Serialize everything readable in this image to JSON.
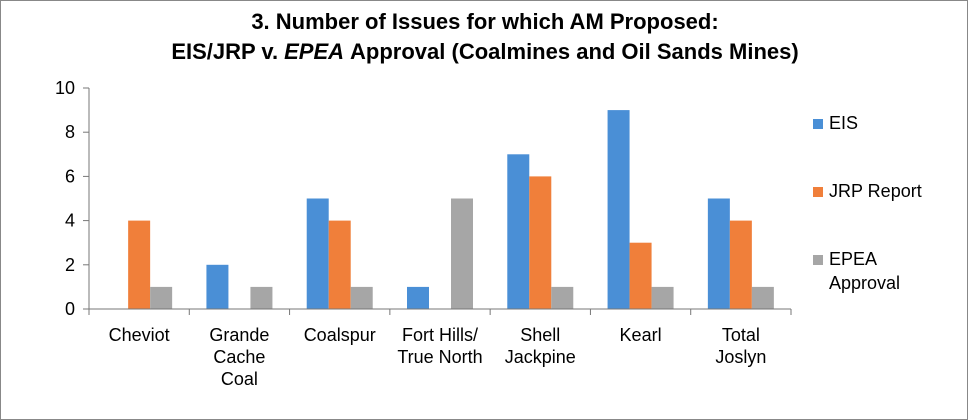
{
  "chart_data": {
    "type": "bar",
    "title": [
      "3. Number of Issues for which AM Proposed:",
      "EIS/JRP v.",
      "EPEA",
      "Approval (Coalmines and Oil Sands Mines)"
    ],
    "categories": [
      [
        "Cheviot"
      ],
      [
        "Grande",
        "Cache",
        "Coal"
      ],
      [
        "Coalspur"
      ],
      [
        "Fort Hills/",
        "True North"
      ],
      [
        "Shell",
        "Jackpine"
      ],
      [
        "Kearl"
      ],
      [
        "Total",
        "Joslyn"
      ]
    ],
    "series": [
      {
        "name": "EIS",
        "color": "#4a8fd6",
        "values": [
          0,
          2,
          5,
          1,
          7,
          9,
          5
        ]
      },
      {
        "name": "JRP Report",
        "color": "#f07f3a",
        "values": [
          4,
          0,
          4,
          0,
          6,
          3,
          4
        ]
      },
      {
        "name": "EPEA Approval",
        "color": "#a6a6a6",
        "values": [
          1,
          1,
          1,
          5,
          1,
          1,
          1
        ]
      }
    ],
    "ylim": [
      0,
      10
    ],
    "yticks": [
      0,
      2,
      4,
      6,
      8,
      10
    ],
    "grid": false,
    "legend": "right"
  }
}
